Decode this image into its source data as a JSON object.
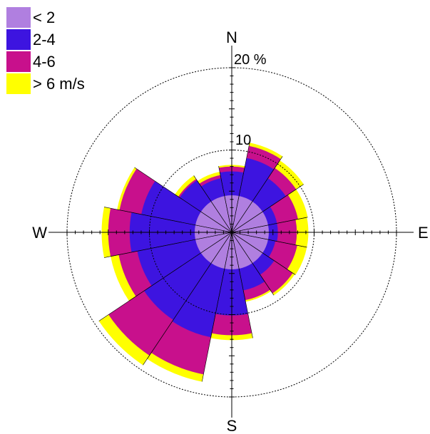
{
  "chart_data": {
    "type": "wind-rose",
    "directions": [
      "N",
      "NNE",
      "NE",
      "ENE",
      "E",
      "ESE",
      "SE",
      "SSE",
      "S",
      "SSW",
      "SW",
      "WSW",
      "W",
      "WNW",
      "NW",
      "NNW"
    ],
    "cardinal_labels": {
      "north": "N",
      "east": "E",
      "south": "S",
      "west": "W"
    },
    "radial_labels": [
      {
        "value": 10,
        "text": "10"
      },
      {
        "value": 20,
        "text": "20 %"
      }
    ],
    "rmax": 20,
    "grid": true,
    "legend_position": "top-left",
    "series": [
      {
        "name": "< 2",
        "color": "#b07fe0",
        "values": [
          4.5,
          4.5,
          4.5,
          4.5,
          4.5,
          4.5,
          4.5,
          4.5,
          4.5,
          4.5,
          4.5,
          4.5,
          4.5,
          4.5,
          4.5,
          4.5
        ]
      },
      {
        "name": "2-4",
        "color": "#3d14e0",
        "values": [
          7.4,
          9.2,
          7.9,
          5.6,
          5.6,
          5.4,
          6.2,
          7.2,
          10.1,
          13.0,
          12.8,
          11.7,
          12.4,
          11.2,
          7.6,
          6.7
        ]
      },
      {
        "name": "4-6",
        "color": "#c8108c",
        "values": [
          8.0,
          10.7,
          9.4,
          8.2,
          7.9,
          8.1,
          8.9,
          8.4,
          12.5,
          17.6,
          18.0,
          14.0,
          15.0,
          13.9,
          7.8,
          7.1
        ]
      },
      {
        "name": "> 6 m/s",
        "color": "#ffff00",
        "values": [
          8.2,
          11.1,
          10.5,
          9.4,
          9.3,
          9.3,
          9.2,
          8.6,
          13.1,
          18.5,
          19.4,
          15.0,
          15.8,
          14.2,
          8.3,
          7.5
        ]
      }
    ]
  }
}
